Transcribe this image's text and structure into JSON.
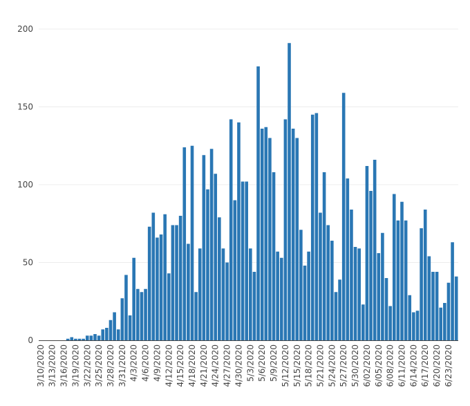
{
  "chart_data": {
    "type": "bar",
    "title": "",
    "xlabel": "",
    "ylabel": "",
    "ylim": [
      0,
      200
    ],
    "y_ticks": [
      0,
      50,
      100,
      150,
      200
    ],
    "x_start": "2020-03-10",
    "x_tick_labels": [
      "3/10/2020",
      "3/13/2020",
      "3/16/2020",
      "3/19/2020",
      "3/22/2020",
      "3/25/2020",
      "3/28/2020",
      "3/31/2020",
      "4/3/2020",
      "4/6/2020",
      "4/9/2020",
      "4/12/2020",
      "4/15/2020",
      "4/18/2020",
      "4/21/2020",
      "4/24/2020",
      "4/27/2020",
      "4/30/2020",
      "5/3/2020",
      "5/6/2020",
      "5/9/2020",
      "5/12/2020",
      "5/15/2020",
      "5/18/2020",
      "5/21/2020",
      "5/24/2020",
      "5/27/2020",
      "5/30/2020",
      "6/02/2020",
      "6/05/2020",
      "6/08/2020",
      "6/11/2020",
      "6/14/2020",
      "6/17/2020",
      "6/20/2020",
      "6/23/2020"
    ],
    "bar_color": "#2a77b4",
    "grid": true,
    "series": [
      {
        "values": [
          0,
          0,
          0,
          0,
          0,
          0,
          0,
          1,
          2,
          1,
          1,
          1,
          3,
          3,
          4,
          3,
          7,
          8,
          13,
          18,
          7,
          27,
          42,
          16,
          53,
          33,
          31,
          33,
          73,
          82,
          66,
          68,
          81,
          43,
          74,
          74,
          80,
          124,
          62,
          125,
          31,
          59,
          119,
          97,
          123,
          107,
          79,
          59,
          50,
          142,
          90,
          140,
          102,
          102,
          59,
          44,
          176,
          136,
          137,
          130,
          108,
          57,
          53,
          142,
          191,
          136,
          130,
          71,
          48,
          57,
          145,
          146,
          82,
          108,
          74,
          64,
          31,
          39,
          159,
          104,
          84,
          60,
          59,
          23,
          112,
          96,
          116,
          56,
          69,
          40,
          22,
          94,
          77,
          89,
          77,
          29,
          18,
          19,
          72,
          84,
          54,
          44,
          44,
          21,
          24,
          37,
          63,
          41
        ]
      }
    ]
  }
}
